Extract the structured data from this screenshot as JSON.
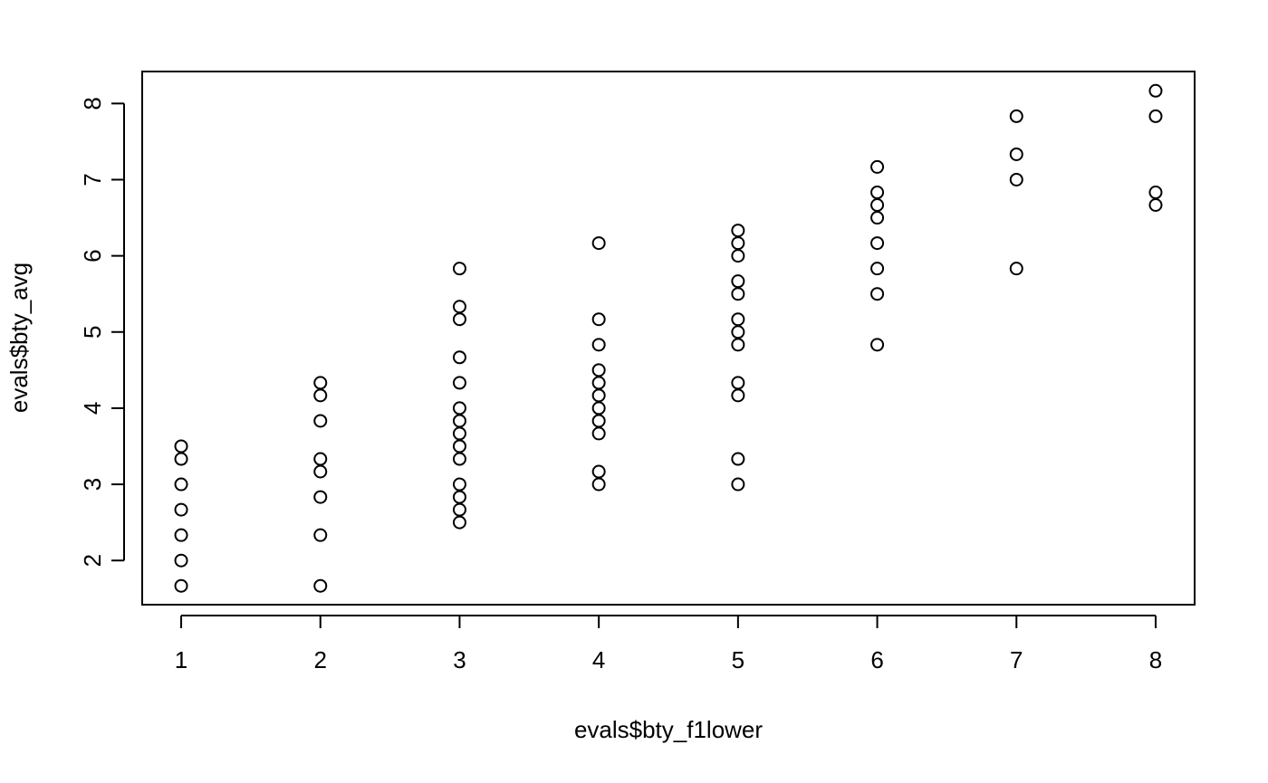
{
  "chart_data": {
    "type": "scatter",
    "title": "",
    "xlabel": "evals$bty_f1lower",
    "ylabel": "evals$bty_avg",
    "xlim": [
      0.72,
      8.28
    ],
    "ylim": [
      1.42,
      8.42
    ],
    "x_ticks": [
      1,
      2,
      3,
      4,
      5,
      6,
      7,
      8
    ],
    "y_ticks": [
      2,
      3,
      4,
      5,
      6,
      7,
      8
    ],
    "x_tick_labels": [
      "1",
      "2",
      "3",
      "4",
      "5",
      "6",
      "7",
      "8"
    ],
    "y_tick_labels": [
      "2",
      "3",
      "4",
      "5",
      "6",
      "7",
      "8"
    ],
    "grid": false,
    "marker": "open-circle",
    "colors": {
      "points": "#000000",
      "axes": "#000000",
      "background": "#ffffff"
    },
    "points": [
      {
        "x": 1,
        "y": 3.5
      },
      {
        "x": 1,
        "y": 3.333
      },
      {
        "x": 1,
        "y": 3.0
      },
      {
        "x": 1,
        "y": 2.667
      },
      {
        "x": 1,
        "y": 2.333
      },
      {
        "x": 1,
        "y": 2.0
      },
      {
        "x": 1,
        "y": 1.667
      },
      {
        "x": 2,
        "y": 4.333
      },
      {
        "x": 2,
        "y": 4.167
      },
      {
        "x": 2,
        "y": 3.833
      },
      {
        "x": 2,
        "y": 3.333
      },
      {
        "x": 2,
        "y": 3.167
      },
      {
        "x": 2,
        "y": 2.833
      },
      {
        "x": 2,
        "y": 2.333
      },
      {
        "x": 2,
        "y": 1.667
      },
      {
        "x": 3,
        "y": 5.833
      },
      {
        "x": 3,
        "y": 5.333
      },
      {
        "x": 3,
        "y": 5.167
      },
      {
        "x": 3,
        "y": 4.667
      },
      {
        "x": 3,
        "y": 4.333
      },
      {
        "x": 3,
        "y": 4.0
      },
      {
        "x": 3,
        "y": 3.833
      },
      {
        "x": 3,
        "y": 3.667
      },
      {
        "x": 3,
        "y": 3.5
      },
      {
        "x": 3,
        "y": 3.333
      },
      {
        "x": 3,
        "y": 3.0
      },
      {
        "x": 3,
        "y": 2.833
      },
      {
        "x": 3,
        "y": 2.667
      },
      {
        "x": 3,
        "y": 2.5
      },
      {
        "x": 4,
        "y": 6.167
      },
      {
        "x": 4,
        "y": 5.167
      },
      {
        "x": 4,
        "y": 4.833
      },
      {
        "x": 4,
        "y": 4.5
      },
      {
        "x": 4,
        "y": 4.333
      },
      {
        "x": 4,
        "y": 4.167
      },
      {
        "x": 4,
        "y": 4.0
      },
      {
        "x": 4,
        "y": 3.833
      },
      {
        "x": 4,
        "y": 3.667
      },
      {
        "x": 4,
        "y": 3.167
      },
      {
        "x": 4,
        "y": 3.0
      },
      {
        "x": 5,
        "y": 6.333
      },
      {
        "x": 5,
        "y": 6.167
      },
      {
        "x": 5,
        "y": 6.0
      },
      {
        "x": 5,
        "y": 5.667
      },
      {
        "x": 5,
        "y": 5.5
      },
      {
        "x": 5,
        "y": 5.167
      },
      {
        "x": 5,
        "y": 5.0
      },
      {
        "x": 5,
        "y": 4.833
      },
      {
        "x": 5,
        "y": 4.333
      },
      {
        "x": 5,
        "y": 4.167
      },
      {
        "x": 5,
        "y": 3.333
      },
      {
        "x": 5,
        "y": 3.0
      },
      {
        "x": 6,
        "y": 7.167
      },
      {
        "x": 6,
        "y": 6.833
      },
      {
        "x": 6,
        "y": 6.667
      },
      {
        "x": 6,
        "y": 6.5
      },
      {
        "x": 6,
        "y": 6.167
      },
      {
        "x": 6,
        "y": 5.833
      },
      {
        "x": 6,
        "y": 5.5
      },
      {
        "x": 6,
        "y": 4.833
      },
      {
        "x": 7,
        "y": 7.833
      },
      {
        "x": 7,
        "y": 7.333
      },
      {
        "x": 7,
        "y": 7.0
      },
      {
        "x": 7,
        "y": 5.833
      },
      {
        "x": 8,
        "y": 8.167
      },
      {
        "x": 8,
        "y": 7.833
      },
      {
        "x": 8,
        "y": 6.833
      },
      {
        "x": 8,
        "y": 6.667
      }
    ]
  }
}
